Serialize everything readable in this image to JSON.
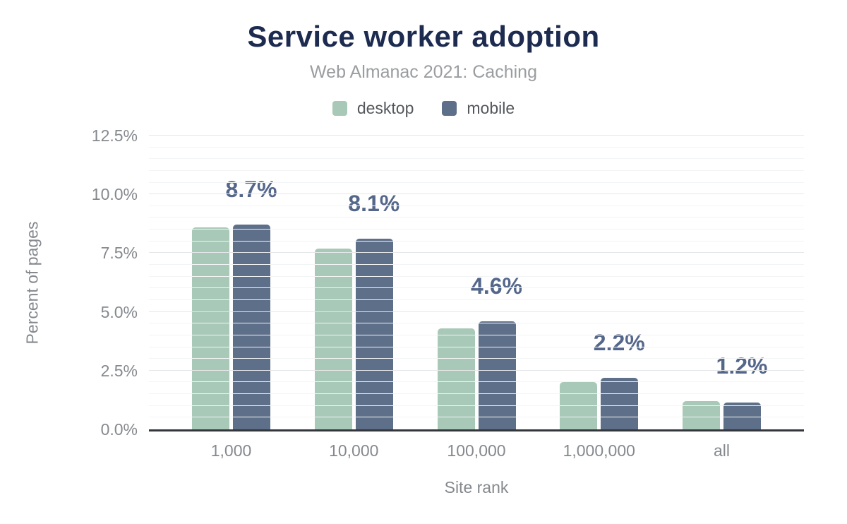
{
  "title": "Service worker adoption",
  "subtitle": "Web Almanac 2021: Caching",
  "legend": [
    {
      "label": "desktop",
      "color": "#a9c9b8"
    },
    {
      "label": "mobile",
      "color": "#5e7089"
    }
  ],
  "chart_data": {
    "type": "bar",
    "title": "Service worker adoption",
    "subtitle": "Web Almanac 2021: Caching",
    "categories": [
      "1,000",
      "10,000",
      "100,000",
      "1,000,000",
      "all"
    ],
    "series": [
      {
        "name": "desktop",
        "color": "#a9c9b8",
        "values": [
          8.6,
          7.7,
          4.3,
          2.0,
          1.2
        ]
      },
      {
        "name": "mobile",
        "color": "#5e7089",
        "values": [
          8.7,
          8.1,
          4.6,
          2.2,
          1.15
        ]
      }
    ],
    "data_labels": [
      "8.7%",
      "8.1%",
      "4.6%",
      "2.2%",
      "1.2%"
    ],
    "xlabel": "Site rank",
    "ylabel": "Percent of pages",
    "ylim": [
      0,
      12.5
    ],
    "yticks": [
      "0.0%",
      "2.5%",
      "5.0%",
      "7.5%",
      "10.0%",
      "12.5%"
    ],
    "grid": "horizontal; minor lines every 0.5%, major lines every 2.5%",
    "legend_position": "top-center",
    "bar_corner_radius": "rounded top corners"
  },
  "colors": {
    "title": "#1c2b4f",
    "subtitle": "#9a9da0",
    "axis_text": "#85898e",
    "legend_text": "#54585c",
    "data_label": "#54678b",
    "axis_line": "#33363a",
    "gridline_major": "#e6e7e9",
    "gridline_minor": "#f3f4f5",
    "background": "#ffffff"
  }
}
